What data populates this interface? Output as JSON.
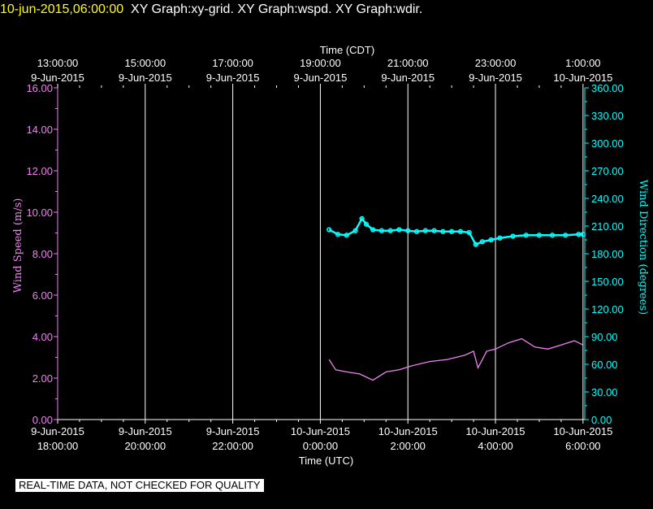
{
  "header": {
    "timestamp": "10-jun-2015,06:00:00",
    "layers": "XY Graph:xy-grid.  XY Graph:wspd.  XY Graph:wdir."
  },
  "chart_data": {
    "type": "line",
    "top_axis_title": "Time (CDT)",
    "bottom_axis_title": "Time (UTC)",
    "ylabel_left": "Wind Speed (m/s)",
    "ylabel_right": "Wind Direction (degrees)",
    "ylim_left": [
      0,
      16
    ],
    "ylim_right": [
      0,
      360
    ],
    "yticks_left": [
      "0.00",
      "2.00",
      "4.00",
      "6.00",
      "8.00",
      "10.00",
      "12.00",
      "14.00",
      "16.00"
    ],
    "yticks_right": [
      "0.00",
      "30.00",
      "60.00",
      "90.00",
      "120.00",
      "150.00",
      "180.00",
      "210.00",
      "240.00",
      "270.00",
      "300.00",
      "330.00",
      "360.00"
    ],
    "x_range_utc_hours": [
      18,
      30.04
    ],
    "x_note": "hours of 9-Jun-2015 UTC; values above 24 fall on 10-Jun-2015",
    "xticks_utc_hours": [
      18,
      20,
      22,
      24,
      26,
      28,
      30
    ],
    "xticks_bottom": [
      [
        "9-Jun-2015",
        "18:00:00"
      ],
      [
        "9-Jun-2015",
        "20:00:00"
      ],
      [
        "9-Jun-2015",
        "22:00:00"
      ],
      [
        "10-Jun-2015",
        "0:00:00"
      ],
      [
        "10-Jun-2015",
        "2:00:00"
      ],
      [
        "10-Jun-2015",
        "4:00:00"
      ],
      [
        "10-Jun-2015",
        "6:00:00"
      ]
    ],
    "xticks_top": [
      [
        "13:00:00",
        "9-Jun-2015"
      ],
      [
        "15:00:00",
        "9-Jun-2015"
      ],
      [
        "17:00:00",
        "9-Jun-2015"
      ],
      [
        "19:00:00",
        "9-Jun-2015"
      ],
      [
        "21:00:00",
        "9-Jun-2015"
      ],
      [
        "23:00:00",
        "9-Jun-2015"
      ],
      [
        "1:00:00",
        "10-Jun-2015"
      ]
    ],
    "grid": true,
    "colors": {
      "wspd": "#ee82ee",
      "wdir": "#00ffff",
      "grid": "#ffffff",
      "left_axis": "#ee82ee",
      "right_axis": "#00ffff",
      "text": "#ffffff"
    },
    "series": [
      {
        "axis": "left",
        "style": "line",
        "x_utc_hours": [
          24.2,
          24.35,
          24.6,
          24.9,
          25.2,
          25.5,
          25.8,
          26.1,
          26.5,
          26.9,
          27.3,
          27.5,
          27.6,
          27.8,
          28.0,
          28.3,
          28.6,
          28.9,
          29.2,
          29.5,
          29.8,
          30.0
        ],
        "values": [
          2.9,
          2.4,
          2.3,
          2.2,
          1.9,
          2.3,
          2.4,
          2.6,
          2.8,
          2.9,
          3.1,
          3.3,
          2.5,
          3.3,
          3.4,
          3.7,
          3.9,
          3.5,
          3.4,
          3.6,
          3.8,
          3.6
        ]
      },
      {
        "axis": "right",
        "style": "dots",
        "x_utc_hours": [
          24.2,
          24.4,
          24.6,
          24.8,
          24.95,
          25.05,
          25.2,
          25.4,
          25.6,
          25.8,
          26.0,
          26.2,
          26.4,
          26.6,
          26.8,
          27.0,
          27.2,
          27.4,
          27.55,
          27.7,
          27.9,
          28.1,
          28.4,
          28.7,
          29.0,
          29.3,
          29.6,
          29.9,
          30.0
        ],
        "values": [
          206,
          201,
          200,
          205,
          218,
          212,
          206,
          205,
          205,
          206,
          205,
          204,
          205,
          205,
          204,
          204,
          204,
          203,
          190,
          193,
          195,
          197,
          199,
          200,
          200,
          200,
          200,
          201,
          201
        ]
      }
    ]
  }
}
